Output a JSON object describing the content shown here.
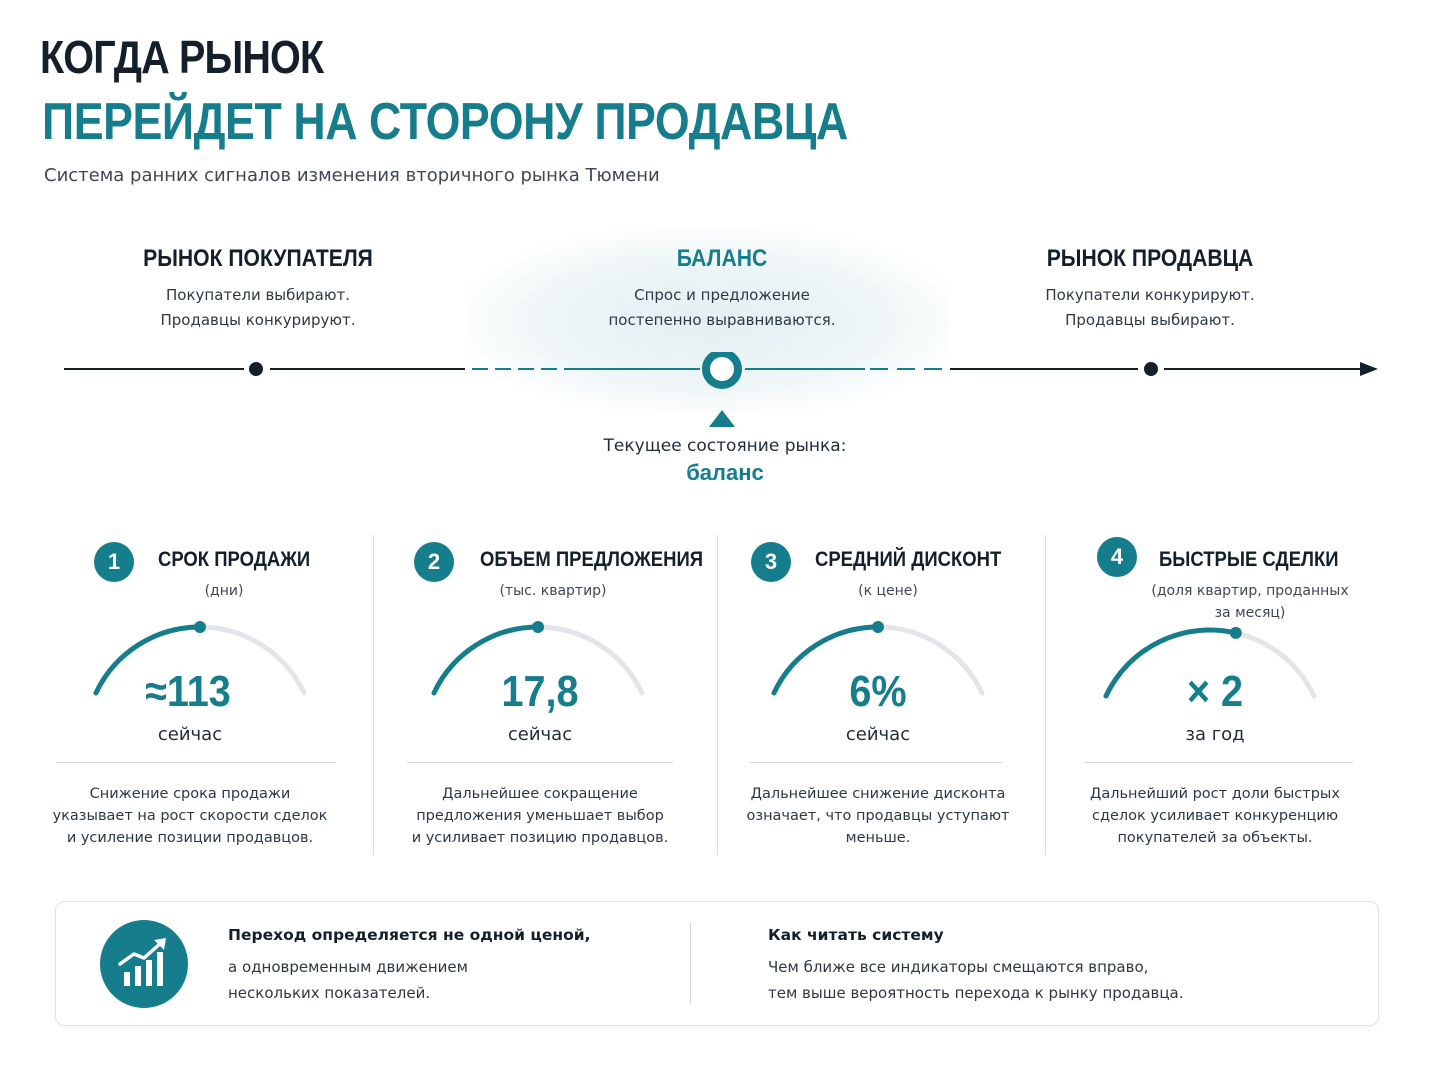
{
  "header": {
    "title_line1": "КОГДА РЫНОК",
    "title_line2": "ПЕРЕЙДЕТ НА СТОРОНУ ПРОДАВЦА",
    "subtitle": "Система ранних сигналов изменения вторичного рынка Тюмени"
  },
  "scale": {
    "zones": [
      {
        "title": "РЫНОК ПОКУПАТЕЛЯ",
        "line1": "Покупатели выбирают.",
        "line2": "Продавцы конкурируют."
      },
      {
        "title": "БАЛАНС",
        "line1": "Спрос и предложение",
        "line2": "постепенно выравниваются."
      },
      {
        "title": "РЫНОК ПРОДАВЦА",
        "line1": "Покупатели конкурируют.",
        "line2": "Продавцы выбирают."
      }
    ],
    "current_label": "Текущее состояние рынка:",
    "current_value": "баланс",
    "accent_color": "#157d8c",
    "dark_color": "#13202c"
  },
  "indicators": [
    {
      "number": "1",
      "title": "СРОК ПРОДАЖИ",
      "unit": "(дни)",
      "value": "≈113",
      "period": "сейчас",
      "gauge_level": 0.5,
      "note_line1": "Снижение срока продажи",
      "note_line2": "указывает на рост скорости сделок",
      "note_line3": "и усиление позиции продавцов."
    },
    {
      "number": "2",
      "title": "ОБЪЕМ ПРЕДЛОЖЕНИЯ",
      "unit": "(тыс. квартир)",
      "value": "17,8",
      "period": "сейчас",
      "gauge_level": 0.5,
      "note_line1": "Дальнейшее сокращение",
      "note_line2": "предложения уменьшает выбор",
      "note_line3": "и усиливает позицию продавцов."
    },
    {
      "number": "3",
      "title": "СРЕДНИЙ ДИСКОНТ",
      "unit": "(к цене)",
      "value": "6%",
      "period": "сейчас",
      "gauge_level": 0.5,
      "note_line1": "Дальнейшее снижение дисконта",
      "note_line2": "означает, что продавцы уступают",
      "note_line3": "меньше."
    },
    {
      "number": "4",
      "title": "БЫСТРЫЕ СДЕЛКИ",
      "unit_line1": "(доля квартир, проданных",
      "unit_line2": "за месяц)",
      "value": "× 2",
      "period": "за год",
      "gauge_level": 0.6,
      "note_line1": "Дальнейший рост доли быстрых",
      "note_line2": "сделок усиливает конкуренцию",
      "note_line3": "покупателей за объекты."
    }
  ],
  "bottom": {
    "icon": "chart-growth-icon",
    "left_title": "Переход определяется не одной ценой,",
    "left_line1": "а одновременным движением",
    "left_line2": "нескольких показателей.",
    "right_title": "Как читать систему",
    "right_line1": "Чем ближе все индикаторы смещаются вправо,",
    "right_line2": "тем выше вероятность перехода к рынку продавца."
  }
}
